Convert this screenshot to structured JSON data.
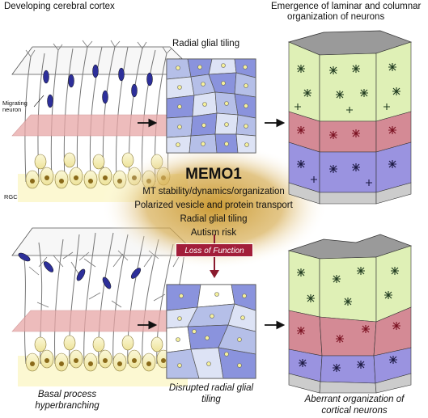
{
  "labels": {
    "top_left_title": "Developing cerebral cortex",
    "top_right_title_line1": "Emergence of laminar and columnar",
    "top_right_title_line2": "organization of neurons",
    "radial_glial_tiling": "Radial glial tiling",
    "migrating_neuron_line1": "Migrating",
    "migrating_neuron_line2": "neuron",
    "rgc": "RGC",
    "bottom_left_line1": "Basal process",
    "bottom_left_line2": "hyperbranching",
    "bottom_mid_line1": "Disrupted radial glial",
    "bottom_mid_line2": "tiling",
    "bottom_right_line1": "Aberrant organization of",
    "bottom_right_line2": "cortical neurons"
  },
  "center": {
    "title": "MEMO1",
    "items": [
      "MT stability/dynamics/organization",
      "Polarized vesicle and protein transport",
      "Radial glial tiling",
      "Autism risk"
    ],
    "loss_label": "Loss of Function"
  },
  "colors": {
    "glow": "#c9962a",
    "tile_dark": "#8a93dd",
    "tile_mid": "#b5bfe8",
    "tile_light": "#dde3f5",
    "layer_green": "#dff0b6",
    "layer_red": "#d48a95",
    "layer_purple": "#9a93e0",
    "loss_box": "#a21e3a",
    "cell_body": "#f6f0b0",
    "migrating_neuron": "#2d2f9a"
  }
}
